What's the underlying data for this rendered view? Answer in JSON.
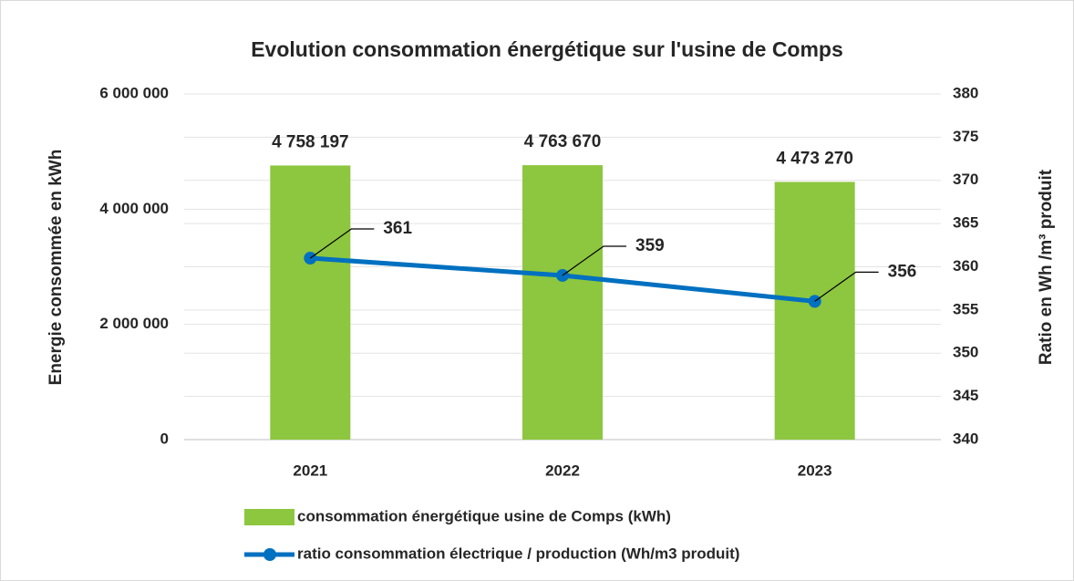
{
  "chart_data": {
    "type": "combo",
    "title": "Evolution consommation énergétique sur l'usine de Comps",
    "y_label": "Energie consommée en kWh",
    "y2_label": "Ratio en Wh /m³ produit",
    "categories": [
      "2021",
      "2022",
      "2023"
    ],
    "series": [
      {
        "name": "consommation énergétique usine de Comps (kWh)",
        "type": "bar",
        "color": "#8dc63f",
        "values": [
          4758197,
          4763670,
          4473270
        ],
        "value_labels": [
          "4 758 197",
          "4 763 670",
          "4 473 270"
        ]
      },
      {
        "name": "ratio consommation électrique / production (Wh/m3 produit)",
        "type": "line",
        "axis": "y2",
        "color": "#0070c0",
        "values": [
          361,
          359,
          356
        ]
      }
    ],
    "ylim": [
      0,
      6000000
    ],
    "yticks": [
      {
        "value": 0,
        "label": "0"
      },
      {
        "value": 2000000,
        "label": "2 000 000"
      },
      {
        "value": 4000000,
        "label": "4 000 000"
      },
      {
        "value": 6000000,
        "label": "6 000 000"
      }
    ],
    "y2lim": [
      340,
      380
    ],
    "y2ticks": [
      340,
      345,
      350,
      355,
      360,
      365,
      370,
      375,
      380
    ],
    "grid": true,
    "legend": "bottom"
  }
}
